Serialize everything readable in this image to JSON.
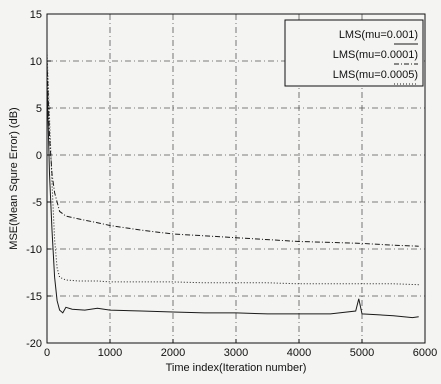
{
  "chart_data": {
    "type": "line",
    "title": "",
    "xlabel": "Time index(Iteration number)",
    "ylabel": "MSE(Mean Squre Error) (dB)",
    "xlim": [
      0,
      6000
    ],
    "ylim": [
      -20,
      15
    ],
    "x_ticks": [
      0,
      1000,
      2000,
      3000,
      4000,
      5000,
      6000
    ],
    "y_ticks": [
      15,
      10,
      5,
      0,
      -5,
      -10,
      -15,
      -20
    ],
    "grid": true,
    "legend_position": "top-right",
    "series": [
      {
        "name": "LMS(mu=0.001)",
        "style": "solid",
        "color": "#1a1a1a",
        "x": [
          0,
          40,
          80,
          120,
          160,
          200,
          250,
          300,
          400,
          600,
          800,
          1000,
          1500,
          2000,
          2500,
          3000,
          3500,
          4000,
          4500,
          4900,
          4950,
          5000,
          5500,
          5800,
          5900
        ],
        "y": [
          8,
          -2,
          -8,
          -13,
          -15.5,
          -16.5,
          -16.8,
          -16.2,
          -16.4,
          -16.5,
          -16.3,
          -16.5,
          -16.6,
          -16.7,
          -16.8,
          -16.8,
          -16.9,
          -16.9,
          -16.9,
          -16.6,
          -15.3,
          -16.9,
          -17.1,
          -17.3,
          -17.2
        ]
      },
      {
        "name": "LMS(mu=0.0001)",
        "style": "dashdot",
        "color": "#1a1a1a",
        "x": [
          0,
          40,
          80,
          120,
          160,
          200,
          300,
          500,
          800,
          1000,
          1500,
          2000,
          2500,
          3000,
          3500,
          4000,
          4500,
          5000,
          5500,
          5900
        ],
        "y": [
          10,
          2,
          -2,
          -4,
          -5,
          -6,
          -6.5,
          -6.8,
          -7.2,
          -7.5,
          -8.0,
          -8.4,
          -8.6,
          -8.8,
          -9.0,
          -9.2,
          -9.3,
          -9.4,
          -9.6,
          -9.7
        ]
      },
      {
        "name": "LMS(mu=0.0005)",
        "style": "dotted",
        "color": "#1a1a1a",
        "x": [
          0,
          40,
          80,
          120,
          160,
          200,
          300,
          500,
          800,
          1000,
          1500,
          2000,
          2500,
          3000,
          3500,
          4000,
          4500,
          5000,
          5500,
          5900
        ],
        "y": [
          11,
          4,
          -3,
          -9,
          -12,
          -13,
          -13.3,
          -13.4,
          -13.4,
          -13.5,
          -13.5,
          -13.5,
          -13.6,
          -13.6,
          -13.6,
          -13.7,
          -13.7,
          -13.7,
          -13.7,
          -13.8
        ]
      }
    ]
  }
}
